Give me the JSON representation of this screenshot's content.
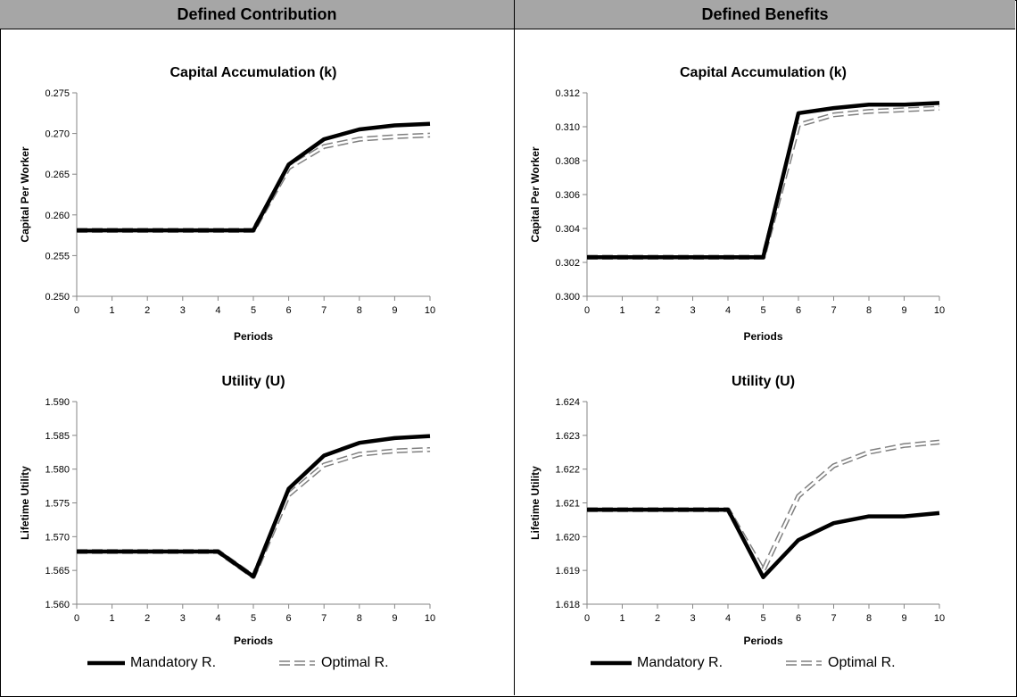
{
  "panels": {
    "left_title": "Defined Contribution",
    "right_title": "Defined Benefits"
  },
  "legend": {
    "left": [
      {
        "name": "Mandatory R.",
        "style": "solid"
      },
      {
        "name": "Optimal R.",
        "style": "dashed"
      }
    ],
    "right": [
      {
        "name": "Mandatory R.",
        "style": "solid"
      },
      {
        "name": "Optimal R.",
        "style": "dashed"
      }
    ]
  },
  "colors": {
    "header_bg": "#a6a6a6",
    "mandatory": "#000000",
    "optimal_outline": "#7f7f7f",
    "axis": "#868686"
  },
  "chart_data": [
    {
      "id": "dc-capital",
      "type": "line",
      "title": "Capital Accumulation (k)",
      "xlabel": "Periods",
      "ylabel": "Capital Per Worker",
      "x": [
        0,
        1,
        2,
        3,
        4,
        5,
        6,
        7,
        8,
        9,
        10
      ],
      "ylim": [
        0.25,
        0.275
      ],
      "yticks": [
        "0.250",
        "0.255",
        "0.260",
        "0.265",
        "0.270",
        "0.275"
      ],
      "series": [
        {
          "name": "Mandatory R.",
          "values": [
            0.2581,
            0.2581,
            0.2581,
            0.2581,
            0.2581,
            0.2581,
            0.2662,
            0.2693,
            0.2705,
            0.271,
            0.2712
          ]
        },
        {
          "name": "Optimal R.",
          "values": [
            0.2581,
            0.2581,
            0.2581,
            0.2581,
            0.2581,
            0.2581,
            0.2658,
            0.2684,
            0.2693,
            0.2696,
            0.2698
          ]
        }
      ]
    },
    {
      "id": "db-capital",
      "type": "line",
      "title": "Capital Accumulation (k)",
      "xlabel": "Periods",
      "ylabel": "Capital Per Worker",
      "x": [
        0,
        1,
        2,
        3,
        4,
        5,
        6,
        7,
        8,
        9,
        10
      ],
      "ylim": [
        0.3,
        0.312
      ],
      "yticks": [
        "0.300",
        "0.302",
        "0.304",
        "0.306",
        "0.308",
        "0.310",
        "0.312"
      ],
      "series": [
        {
          "name": "Mandatory R.",
          "values": [
            0.3023,
            0.3023,
            0.3023,
            0.3023,
            0.3023,
            0.3023,
            0.3108,
            0.3111,
            0.3113,
            0.3113,
            0.3114
          ]
        },
        {
          "name": "Optimal R.",
          "values": [
            0.3023,
            0.3023,
            0.3023,
            0.3023,
            0.3023,
            0.3023,
            0.3101,
            0.3107,
            0.3109,
            0.311,
            0.3111
          ]
        }
      ]
    },
    {
      "id": "dc-utility",
      "type": "line",
      "title": "Utility (U)",
      "xlabel": "Periods",
      "ylabel": "Lifetime Utility",
      "x": [
        0,
        1,
        2,
        3,
        4,
        5,
        6,
        7,
        8,
        9,
        10
      ],
      "ylim": [
        1.56,
        1.59
      ],
      "yticks": [
        "1.560",
        "1.565",
        "1.570",
        "1.575",
        "1.580",
        "1.585",
        "1.590"
      ],
      "series": [
        {
          "name": "Mandatory R.",
          "values": [
            1.5678,
            1.5678,
            1.5678,
            1.5678,
            1.5678,
            1.5641,
            1.5771,
            1.582,
            1.5839,
            1.5846,
            1.5849
          ]
        },
        {
          "name": "Optimal R.",
          "values": [
            1.5678,
            1.5678,
            1.5678,
            1.5678,
            1.5678,
            1.5641,
            1.5762,
            1.5806,
            1.5822,
            1.5827,
            1.5829
          ]
        }
      ]
    },
    {
      "id": "db-utility",
      "type": "line",
      "title": "Utility (U)",
      "xlabel": "Periods",
      "ylabel": "Lifetime Utility",
      "x": [
        0,
        1,
        2,
        3,
        4,
        5,
        6,
        7,
        8,
        9,
        10
      ],
      "ylim": [
        1.618,
        1.624
      ],
      "yticks": [
        "1.618",
        "1.619",
        "1.620",
        "1.621",
        "1.622",
        "1.623",
        "1.624"
      ],
      "series": [
        {
          "name": "Mandatory R.",
          "values": [
            1.6208,
            1.6208,
            1.6208,
            1.6208,
            1.6208,
            1.6188,
            1.6199,
            1.6204,
            1.6206,
            1.6206,
            1.6207
          ]
        },
        {
          "name": "Optimal R.",
          "values": [
            1.6208,
            1.6208,
            1.6208,
            1.6208,
            1.6208,
            1.619,
            1.6212,
            1.6221,
            1.6225,
            1.6227,
            1.6228
          ]
        }
      ]
    }
  ]
}
